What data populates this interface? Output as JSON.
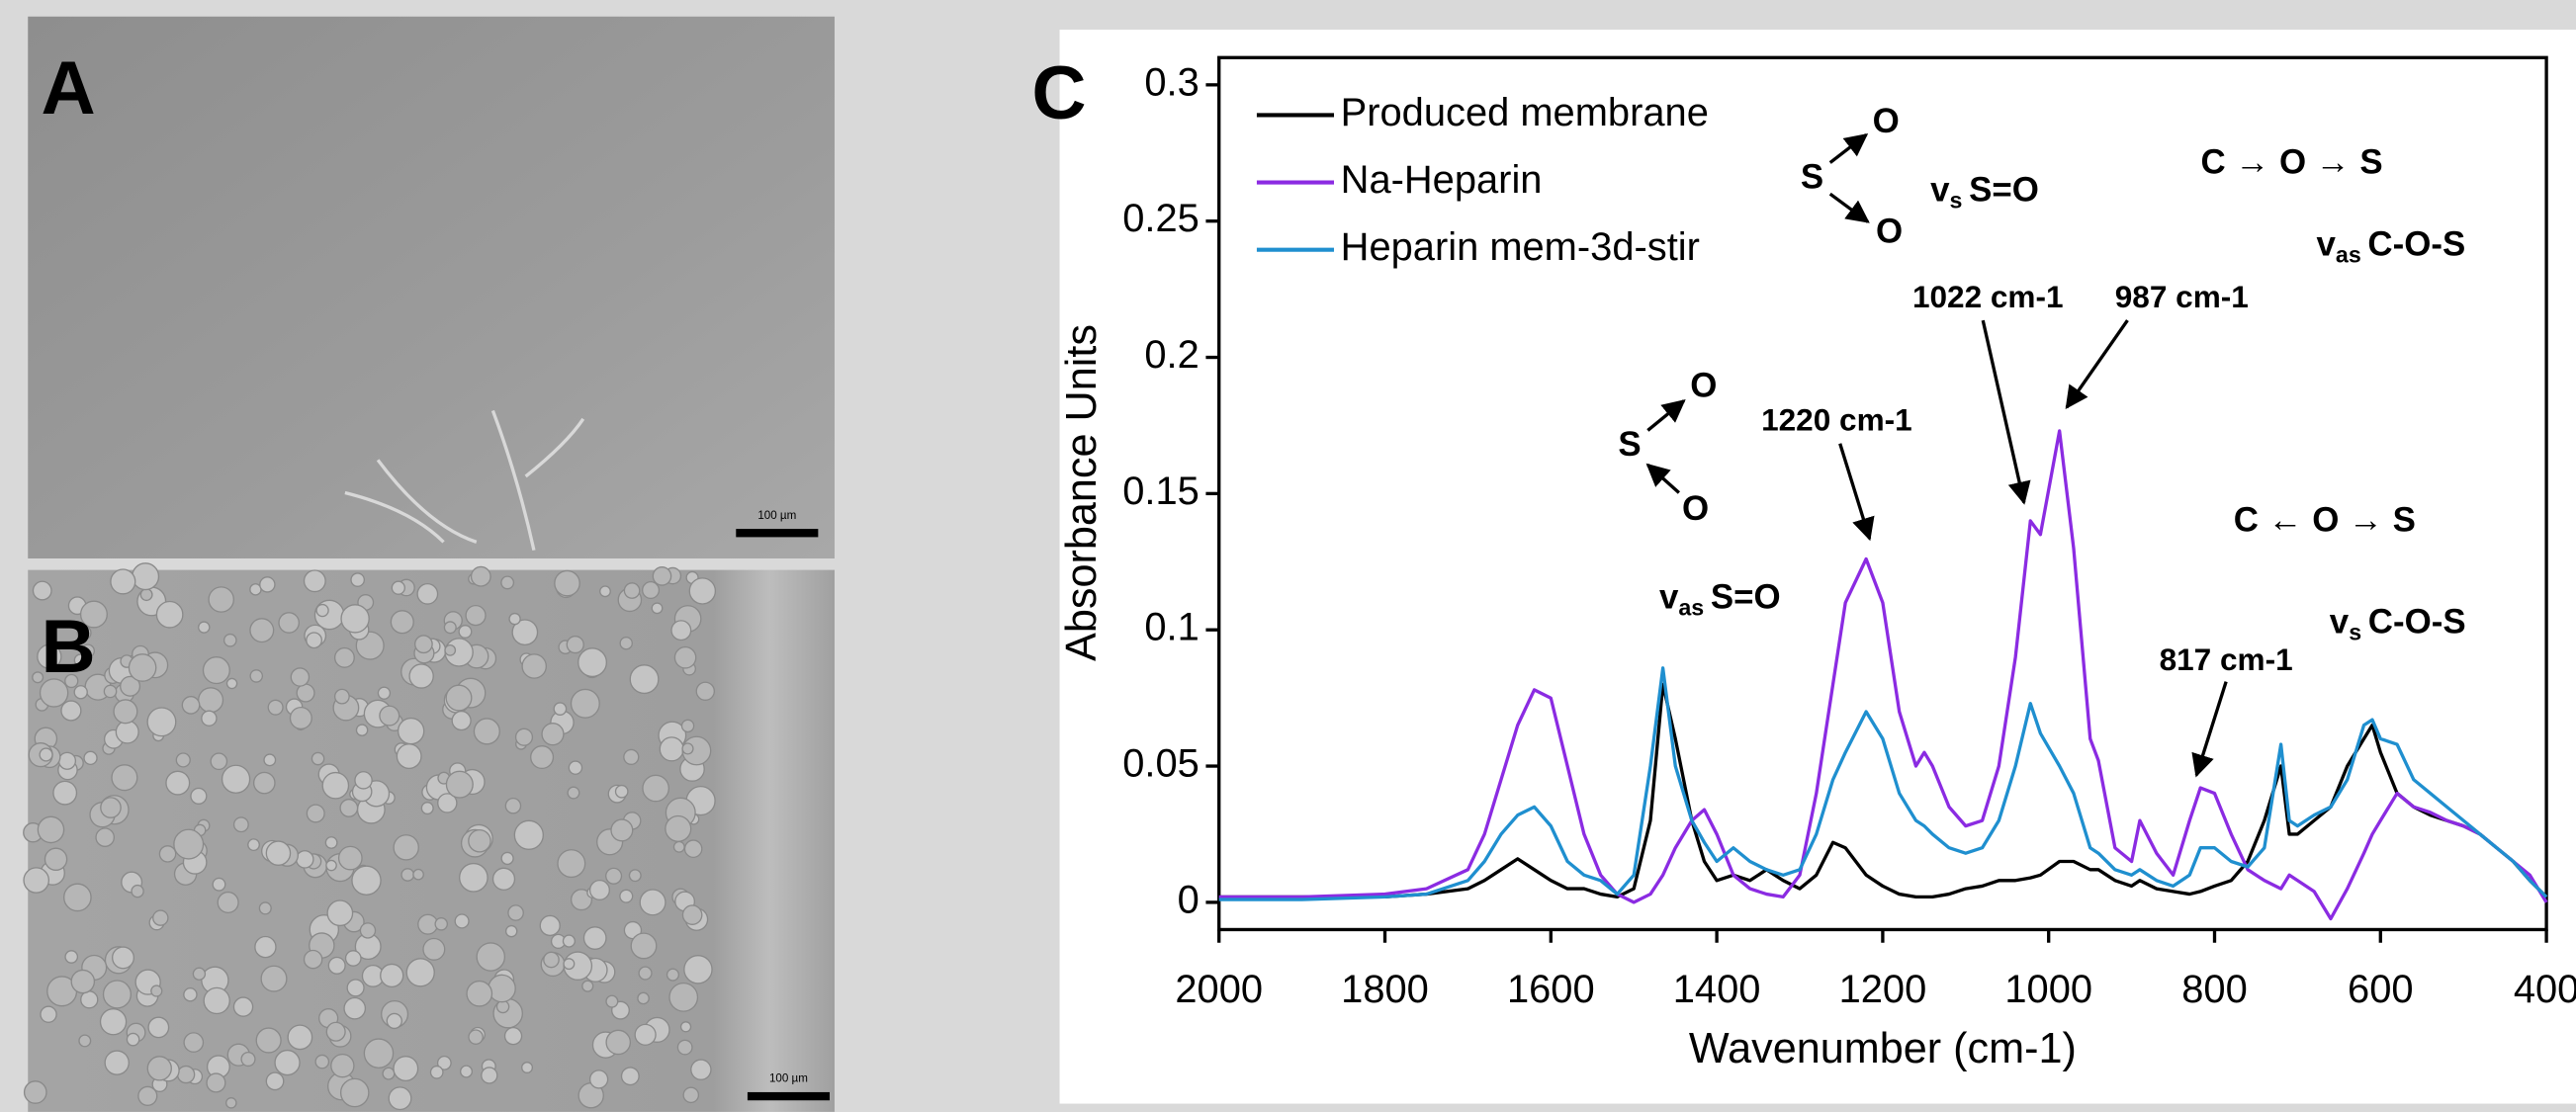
{
  "panels": [
    {
      "label": "A",
      "scale_bar": "100 µm"
    },
    {
      "label": "B",
      "scale_bar": "100 µm"
    }
  ],
  "chart_data": {
    "type": "line",
    "panel_label": "C",
    "x_label": "Wavenumber (cm-1)",
    "y_label": "Absorbance Units",
    "xlim": [
      2000,
      400
    ],
    "ylim": [
      -0.01,
      0.31
    ],
    "xticks": [
      2000,
      1800,
      1600,
      1400,
      1200,
      1000,
      800,
      600,
      400
    ],
    "yticks": [
      0,
      0.05,
      0.1,
      0.15,
      0.2,
      0.25,
      0.3
    ],
    "legend": "upper left",
    "x": [
      2000,
      1900,
      1800,
      1750,
      1700,
      1680,
      1660,
      1640,
      1620,
      1600,
      1580,
      1560,
      1540,
      1520,
      1500,
      1480,
      1465,
      1450,
      1430,
      1415,
      1400,
      1380,
      1360,
      1340,
      1320,
      1300,
      1280,
      1260,
      1245,
      1220,
      1200,
      1180,
      1160,
      1150,
      1140,
      1120,
      1100,
      1080,
      1060,
      1040,
      1022,
      1010,
      987,
      970,
      950,
      940,
      920,
      900,
      890,
      870,
      850,
      830,
      817,
      800,
      780,
      760,
      740,
      720,
      710,
      700,
      680,
      660,
      640,
      620,
      610,
      600,
      580,
      560,
      540,
      520,
      500,
      480,
      460,
      440,
      420,
      400
    ],
    "series": [
      {
        "name": "Produced membrane",
        "color": "#000000",
        "values": [
          0.002,
          0.002,
          0.002,
          0.003,
          0.005,
          0.008,
          0.012,
          0.016,
          0.012,
          0.008,
          0.005,
          0.005,
          0.003,
          0.002,
          0.005,
          0.03,
          0.08,
          0.06,
          0.03,
          0.015,
          0.008,
          0.01,
          0.008,
          0.012,
          0.008,
          0.005,
          0.01,
          0.022,
          0.02,
          0.01,
          0.006,
          0.003,
          0.002,
          0.002,
          0.002,
          0.003,
          0.005,
          0.006,
          0.008,
          0.008,
          0.009,
          0.01,
          0.015,
          0.015,
          0.012,
          0.012,
          0.008,
          0.006,
          0.008,
          0.005,
          0.004,
          0.003,
          0.004,
          0.006,
          0.008,
          0.015,
          0.03,
          0.05,
          0.025,
          0.025,
          0.03,
          0.035,
          0.05,
          0.06,
          0.065,
          0.055,
          0.04,
          0.035,
          0.032,
          0.03,
          0.028,
          0.025,
          0.02,
          0.015,
          0.008,
          0.002
        ]
      },
      {
        "name": "Na-Heparin",
        "color": "#8b2be2",
        "values": [
          0.002,
          0.002,
          0.003,
          0.005,
          0.012,
          0.025,
          0.045,
          0.065,
          0.078,
          0.075,
          0.05,
          0.025,
          0.01,
          0.003,
          0.0,
          0.003,
          0.01,
          0.02,
          0.03,
          0.034,
          0.025,
          0.01,
          0.005,
          0.003,
          0.002,
          0.01,
          0.04,
          0.08,
          0.11,
          0.126,
          0.11,
          0.07,
          0.05,
          0.055,
          0.05,
          0.035,
          0.028,
          0.03,
          0.05,
          0.09,
          0.14,
          0.135,
          0.173,
          0.13,
          0.06,
          0.052,
          0.02,
          0.015,
          0.03,
          0.018,
          0.01,
          0.03,
          0.042,
          0.04,
          0.025,
          0.012,
          0.008,
          0.005,
          0.01,
          0.008,
          0.004,
          -0.006,
          0.005,
          0.018,
          0.025,
          0.03,
          0.04,
          0.035,
          0.033,
          0.03,
          0.028,
          0.025,
          0.02,
          0.015,
          0.01,
          0.0
        ]
      },
      {
        "name": "Heparin mem-3d-stir",
        "color": "#1f8fcf",
        "values": [
          0.001,
          0.001,
          0.002,
          0.003,
          0.008,
          0.015,
          0.025,
          0.032,
          0.035,
          0.028,
          0.015,
          0.01,
          0.008,
          0.003,
          0.01,
          0.05,
          0.086,
          0.05,
          0.03,
          0.022,
          0.015,
          0.02,
          0.015,
          0.012,
          0.01,
          0.012,
          0.025,
          0.045,
          0.055,
          0.07,
          0.06,
          0.04,
          0.03,
          0.028,
          0.025,
          0.02,
          0.018,
          0.02,
          0.03,
          0.05,
          0.073,
          0.062,
          0.05,
          0.04,
          0.02,
          0.018,
          0.012,
          0.01,
          0.012,
          0.008,
          0.006,
          0.01,
          0.02,
          0.02,
          0.015,
          0.013,
          0.02,
          0.058,
          0.03,
          0.028,
          0.032,
          0.035,
          0.045,
          0.065,
          0.067,
          0.06,
          0.058,
          0.045,
          0.04,
          0.035,
          0.03,
          0.025,
          0.02,
          0.015,
          0.008,
          0.002
        ]
      }
    ],
    "peak_labels": [
      "1220 cm-1",
      "1022 cm-1",
      "987 cm-1",
      "817 cm-1"
    ],
    "assignments": [
      {
        "symbol": "v",
        "sub": "s",
        "text": "S=O"
      },
      {
        "symbol": "v",
        "sub": "as",
        "text": "S=O"
      },
      {
        "symbol": "v",
        "sub": "as",
        "text": "C-O-S"
      },
      {
        "symbol": "v",
        "sub": "s",
        "text": "C-O-S"
      }
    ],
    "groups": [
      "C → O → S",
      "C ← O → S"
    ],
    "structures": [
      {
        "center": "S",
        "ends": [
          "O",
          "O"
        ]
      },
      {
        "center": "S",
        "ends": [
          "O",
          "O"
        ]
      }
    ]
  }
}
